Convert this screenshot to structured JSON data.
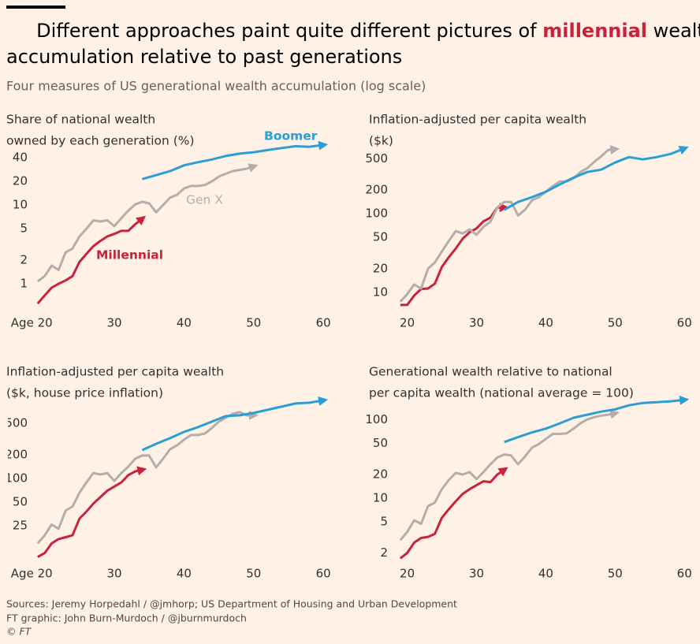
{
  "header": {
    "title": [
      [
        "Different approaches paint quite different pictures of ",
        "millennial",
        " wealth"
      ],
      [
        "accumulation relative to past generations"
      ]
    ],
    "subtitle": "Four measures of US generational wealth accumulation (log scale)"
  },
  "chart_data": [
    {
      "type": "line",
      "title": [
        "Share of national wealth",
        "owned by each generation (%)"
      ],
      "yscale": "log",
      "grid": false,
      "xlim": [
        18,
        61
      ],
      "xticks": [
        {
          "value": 20,
          "label": "Age 20"
        },
        30,
        40,
        50,
        60
      ],
      "ylim": [
        0.5,
        65
      ],
      "yticks": [
        1,
        2,
        5,
        10,
        20,
        40
      ],
      "series": [
        {
          "name": "Millennial",
          "color": "#c8233b",
          "x": [
            19,
            20,
            21,
            22,
            23,
            24,
            25,
            26,
            27,
            28,
            29,
            30,
            31,
            32,
            33,
            34
          ],
          "values": [
            0.56,
            0.71,
            0.89,
            1.0,
            1.1,
            1.25,
            1.9,
            2.4,
            3.0,
            3.5,
            4.0,
            4.3,
            4.7,
            4.7,
            5.7,
            6.7
          ]
        },
        {
          "name": "Gen X",
          "color": "#b3aeab",
          "x": [
            19,
            20,
            21,
            22,
            23,
            24,
            25,
            26,
            27,
            28,
            29,
            30,
            31,
            32,
            33,
            34,
            35,
            36,
            37,
            38,
            39,
            40,
            41,
            42,
            43,
            44,
            45,
            46,
            47,
            48,
            49,
            50
          ],
          "values": [
            1.07,
            1.25,
            1.7,
            1.5,
            2.5,
            2.8,
            4.0,
            5.0,
            6.4,
            6.2,
            6.4,
            5.4,
            6.8,
            8.5,
            10.2,
            11,
            10.5,
            8.1,
            10,
            12.4,
            13.5,
            16.2,
            17.5,
            17.5,
            18,
            20,
            23,
            25,
            27,
            28,
            29,
            31
          ]
        },
        {
          "name": "Boomer",
          "color": "#2a9ed6",
          "x": [
            34,
            36,
            38,
            40,
            42,
            44,
            46,
            48,
            50,
            52,
            54,
            56,
            58,
            60
          ],
          "values": [
            21.4,
            24,
            27,
            32,
            35,
            38,
            42,
            45,
            47,
            50,
            53,
            56,
            55,
            58
          ]
        }
      ]
    },
    {
      "type": "line",
      "title": [
        "Inflation-adjusted per capita wealth",
        "($k)"
      ],
      "yscale": "log",
      "grid": false,
      "xlim": [
        18,
        61
      ],
      "xticks": [
        20,
        30,
        40,
        50,
        60
      ],
      "ylim": [
        6,
        800
      ],
      "yticks": [
        10,
        20,
        50,
        100,
        200,
        500
      ],
      "series": [
        {
          "color": "#c8233b",
          "x": [
            19,
            20,
            21,
            22,
            23,
            24,
            25,
            26,
            27,
            28,
            29,
            30,
            31,
            32,
            33,
            34
          ],
          "values": [
            6.9,
            6.9,
            9.1,
            11,
            11.2,
            12.9,
            21,
            28,
            36,
            48,
            58,
            65,
            80,
            89,
            120,
            120
          ]
        },
        {
          "color": "#b3aeab",
          "x": [
            19,
            20,
            21,
            22,
            23,
            24,
            25,
            26,
            27,
            28,
            29,
            30,
            31,
            32,
            33,
            34,
            35,
            36,
            37,
            38,
            39,
            40,
            41,
            42,
            43,
            44,
            45,
            46,
            47,
            48,
            49,
            50
          ],
          "values": [
            7.6,
            9.5,
            12.6,
            11.2,
            20,
            24,
            33,
            45,
            60,
            56,
            63,
            54,
            68,
            79,
            120,
            141,
            141,
            95,
            112,
            148,
            162,
            190,
            224,
            257,
            257,
            282,
            339,
            380,
            457,
            537,
            646,
            660
          ]
        },
        {
          "color": "#2a9ed6",
          "x": [
            34,
            36,
            38,
            40,
            42,
            44,
            46,
            48,
            50,
            52,
            54,
            56,
            58,
            60
          ],
          "values": [
            112,
            141,
            162,
            190,
            235,
            288,
            339,
            363,
            447,
            525,
            490,
            525,
            575,
            676
          ]
        }
      ]
    },
    {
      "type": "line",
      "title": [
        "Inflation-adjusted per capita wealth",
        "($k, house price inflation)"
      ],
      "yscale": "log",
      "grid": false,
      "xlim": [
        18,
        61
      ],
      "xticks": [
        {
          "value": 20,
          "label": "Age 20"
        },
        30,
        40,
        50,
        60
      ],
      "ylim": [
        10,
        1200
      ],
      "yticks": [
        25,
        50,
        100,
        200,
        500
      ],
      "series": [
        {
          "color": "#c8233b",
          "x": [
            19,
            20,
            21,
            22,
            23,
            24,
            25,
            26,
            27,
            28,
            29,
            30,
            31,
            32,
            33,
            34
          ],
          "values": [
            10.1,
            11.3,
            15,
            17,
            18,
            19,
            31,
            38,
            48,
            58,
            70,
            79,
            89,
            110,
            123,
            129
          ]
        },
        {
          "color": "#b3aeab",
          "x": [
            19,
            20,
            21,
            22,
            23,
            24,
            25,
            26,
            27,
            28,
            29,
            30,
            31,
            32,
            33,
            34,
            35,
            36,
            37,
            38,
            39,
            40,
            41,
            42,
            43,
            44,
            45,
            46,
            47,
            48,
            49,
            50
          ],
          "values": [
            15,
            19,
            26,
            23,
            39,
            44,
            66,
            89,
            117,
            112,
            117,
            93,
            117,
            141,
            178,
            195,
            195,
            138,
            178,
            234,
            263,
            309,
            355,
            355,
            372,
            437,
            525,
            589,
            661,
            692,
            631,
            631
          ]
        },
        {
          "color": "#2a9ed6",
          "x": [
            34,
            36,
            38,
            40,
            42,
            44,
            46,
            48,
            50,
            52,
            54,
            56,
            58,
            60
          ],
          "values": [
            229,
            275,
            324,
            389,
            447,
            525,
            617,
            631,
            676,
            741,
            813,
            891,
            912,
            977
          ]
        }
      ]
    },
    {
      "type": "line",
      "title": [
        "Generational wealth relative to national",
        "per capita wealth (national average = 100)"
      ],
      "yscale": "log",
      "grid": false,
      "xlim": [
        18,
        61
      ],
      "xticks": [
        20,
        30,
        40,
        50,
        60
      ],
      "ylim": [
        1.6,
        250
      ],
      "yticks": [
        2,
        5,
        10,
        20,
        50,
        100
      ],
      "series": [
        {
          "color": "#c8233b",
          "x": [
            19,
            20,
            21,
            22,
            23,
            24,
            25,
            26,
            27,
            28,
            29,
            30,
            31,
            32,
            33,
            34
          ],
          "values": [
            1.7,
            2.0,
            2.7,
            3.1,
            3.2,
            3.5,
            5.6,
            7.2,
            9.1,
            11.3,
            13,
            14.6,
            16.4,
            16,
            20,
            23
          ]
        },
        {
          "color": "#b3aeab",
          "x": [
            19,
            20,
            21,
            22,
            23,
            24,
            25,
            26,
            27,
            28,
            29,
            30,
            31,
            32,
            33,
            34,
            35,
            36,
            37,
            38,
            39,
            40,
            41,
            42,
            43,
            44,
            45,
            46,
            47,
            48,
            49,
            50
          ],
          "values": [
            2.9,
            3.7,
            5.2,
            4.7,
            7.9,
            8.8,
            13,
            17,
            21,
            20,
            21.5,
            17.5,
            21.5,
            27,
            33,
            36,
            35,
            27,
            34,
            44,
            49,
            57,
            66,
            66,
            67,
            77,
            90,
            101,
            108,
            113,
            116,
            121
          ]
        },
        {
          "color": "#2a9ed6",
          "x": [
            34,
            36,
            38,
            40,
            42,
            44,
            46,
            48,
            50,
            52,
            54,
            56,
            58,
            60
          ],
          "values": [
            52,
            60,
            69,
            77,
            90,
            106,
            116,
            127,
            136,
            153,
            164,
            168,
            172,
            180
          ]
        }
      ]
    }
  ],
  "footer": {
    "source": "Sources: Jeremy Horpedahl / @jmhorp; US Department of Housing and Urban Development",
    "credit": "FT graphic: John Burn-Murdoch / @jburnmurdoch",
    "copyright": "© FT"
  }
}
